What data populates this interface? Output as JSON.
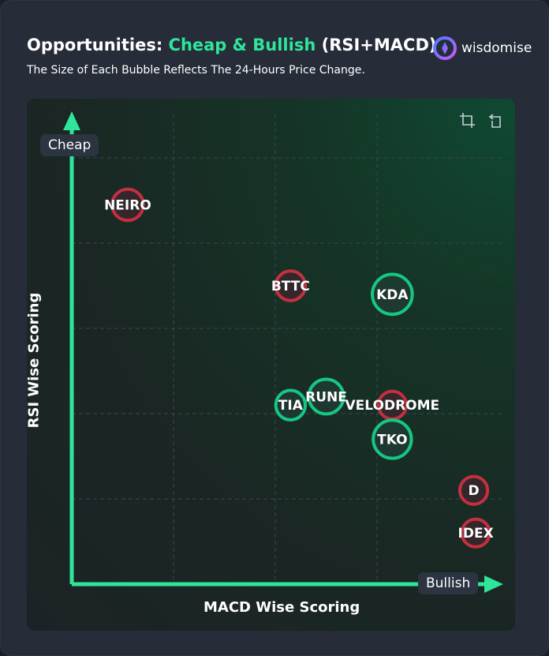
{
  "header": {
    "title_prefix": "Opportunities: ",
    "title_accent": "Cheap & Bullish",
    "title_suffix": " (RSI+MACD)",
    "subtitle": "The Size of Each Bubble Reflects The 24-Hours Price Change.",
    "brand_name": "wisdomise"
  },
  "toolbar": {
    "icons": [
      "crop-icon",
      "reset-icon"
    ]
  },
  "colors": {
    "accent": "#2fe59a",
    "positive": "#16c784",
    "negative": "#c3303f",
    "grid": "#3a4550"
  },
  "chart_data": {
    "type": "scatter",
    "title": "Opportunities: Cheap & Bullish (RSI+MACD)",
    "subtitle": "The Size of Each Bubble Reflects The 24-Hours Price Change.",
    "xlabel": "MACD Wise Scoring",
    "ylabel": "RSI Wise Scoring",
    "x_axis_end_label": "Bullish",
    "y_axis_end_label": "Cheap",
    "xlim": [
      0,
      4
    ],
    "ylim": [
      0,
      5
    ],
    "grid": true,
    "points": [
      {
        "label": "NEIRO",
        "x": 0.55,
        "y": 4.45,
        "direction": "negative",
        "size": 0.9
      },
      {
        "label": "BTTC",
        "x": 2.15,
        "y": 3.5,
        "direction": "negative",
        "size": 0.85
      },
      {
        "label": "KDA",
        "x": 3.15,
        "y": 3.4,
        "direction": "positive",
        "size": 1.15
      },
      {
        "label": "TIA",
        "x": 2.15,
        "y": 2.1,
        "direction": "positive",
        "size": 0.85
      },
      {
        "label": "RUNE",
        "x": 2.5,
        "y": 2.2,
        "direction": "positive",
        "size": 1.0
      },
      {
        "label": "VELODROME",
        "x": 3.15,
        "y": 2.1,
        "direction": "negative",
        "size": 0.8
      },
      {
        "label": "TKO",
        "x": 3.15,
        "y": 1.7,
        "direction": "positive",
        "size": 1.1
      },
      {
        "label": "D",
        "x": 3.95,
        "y": 1.1,
        "direction": "negative",
        "size": 0.8
      },
      {
        "label": "IDEX",
        "x": 3.97,
        "y": 0.6,
        "direction": "negative",
        "size": 0.8
      }
    ]
  }
}
